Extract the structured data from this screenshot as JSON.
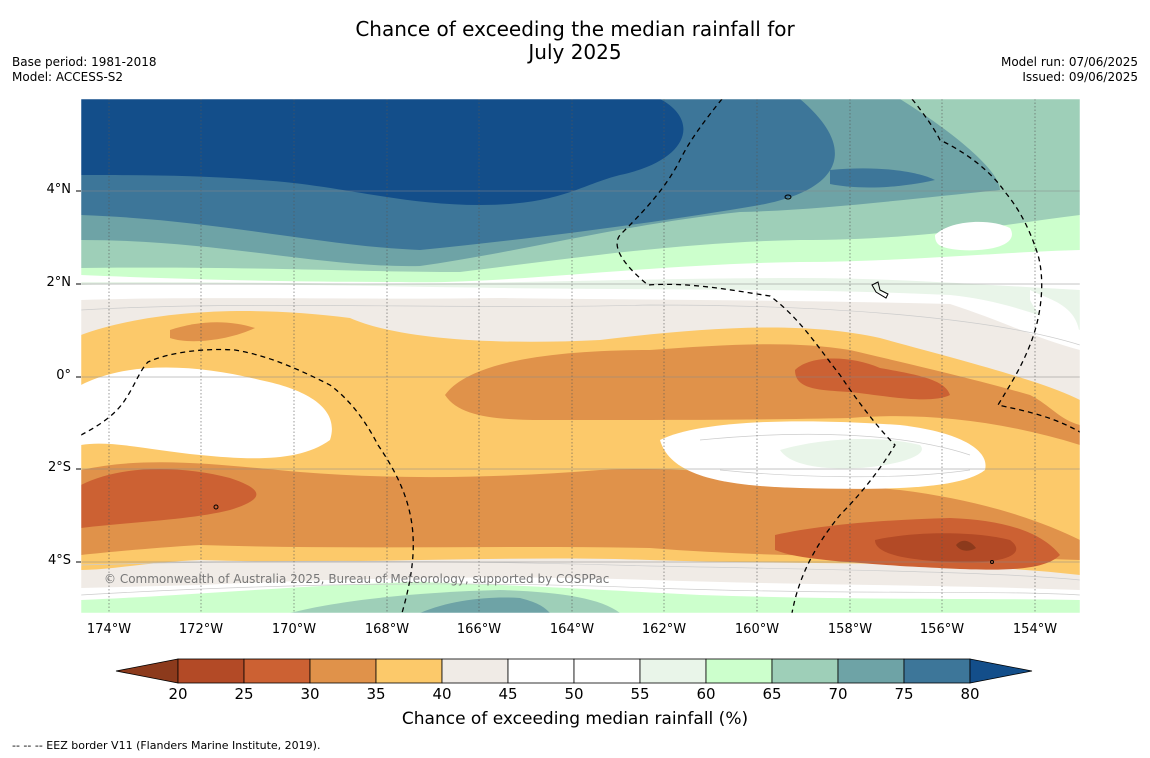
{
  "title_line1": "Chance of exceeding the median rainfall for",
  "title_line2": "July 2025",
  "base_period": "Base period: 1981-2018",
  "model": "Model: ACCESS-S2",
  "model_run": "Model run: 07/06/2025",
  "issued": "Issued: 09/06/2025",
  "copyright": "© Commonwealth of Australia 2025, Bureau of Meteorology, supported by COSPPac",
  "footnote": "--  --  -- EEZ border V11 (Flanders Marine Institute, 2019).",
  "lat_labels": [
    "4°N",
    "2°N",
    "0°",
    "2°S",
    "4°S"
  ],
  "lon_labels": [
    "174°W",
    "172°W",
    "170°W",
    "168°W",
    "166°W",
    "164°W",
    "162°W",
    "160°W",
    "158°W",
    "156°W",
    "154°W"
  ],
  "colorbar": {
    "label": "Chance of exceeding median rainfall (%)",
    "ticks": [
      "20",
      "25",
      "30",
      "35",
      "40",
      "45",
      "50",
      "55",
      "60",
      "65",
      "70",
      "75",
      "80"
    ],
    "colors": [
      "#8c3a1c",
      "#b34a26",
      "#cc6133",
      "#e0924a",
      "#fcc96a",
      "#f0ebe6",
      "#ffffff",
      "#ffffff",
      "#e9f5e9",
      "#ccffcc",
      "#9ecfb8",
      "#6ea3a6",
      "#3d7699",
      "#134e8a"
    ]
  },
  "map_extent": {
    "lon": [
      -174.6,
      -153.0
    ],
    "lat": [
      -5.2,
      5.9
    ]
  }
}
